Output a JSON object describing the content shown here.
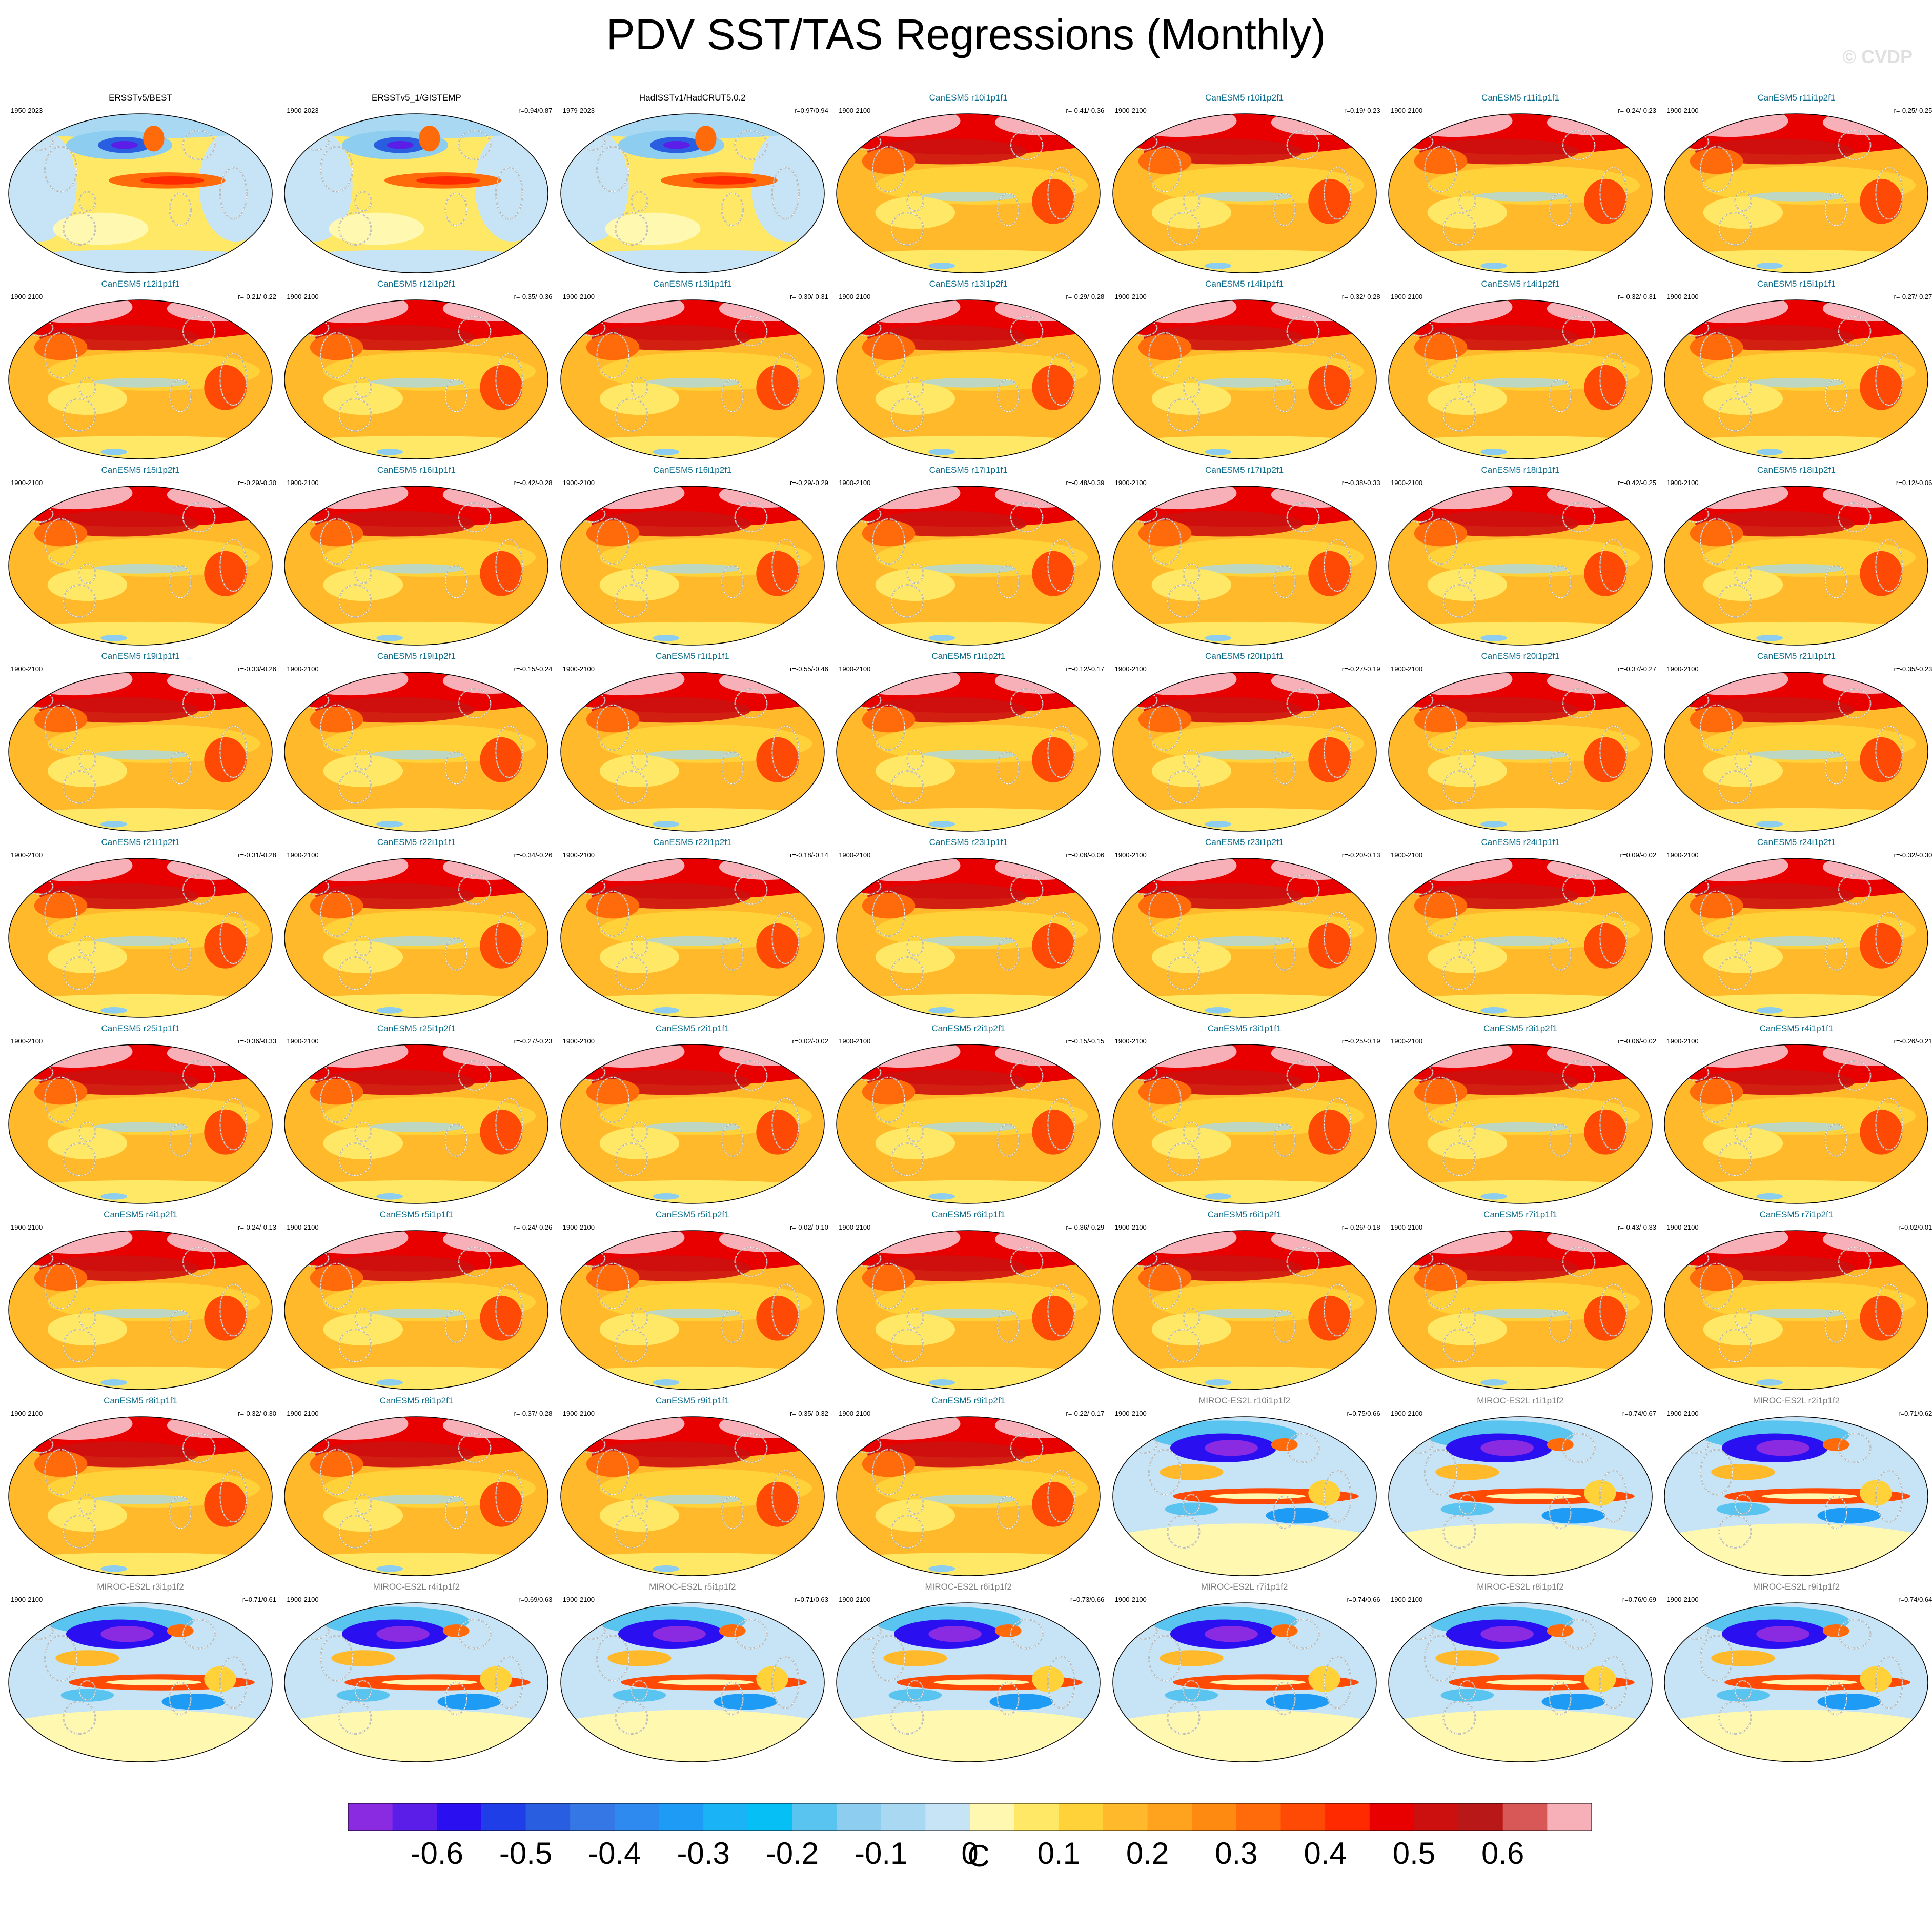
{
  "title": "PDV SST/TAS Regressions (Monthly)",
  "watermark": "© CVDP",
  "colors": {
    "obs_title": "#000000",
    "canesm_title": "#0b6c8c",
    "miroc_title": "#7a7a7a"
  },
  "chart_data": {
    "type": "heatmap",
    "description_source": "grid of global map panels",
    "colorbar": {
      "unit": "C",
      "tick_labels": [
        "-0.6",
        "-0.5",
        "-0.4",
        "-0.3",
        "-0.2",
        "-0.1",
        "0",
        "0.1",
        "0.2",
        "0.3",
        "0.4",
        "0.5",
        "0.6"
      ],
      "colors": [
        "#8a2be2",
        "#5a1ee8",
        "#2a10f0",
        "#1f3ee8",
        "#2a5ee0",
        "#3578e5",
        "#2f8af0",
        "#1e9cf5",
        "#1ab3f5",
        "#06c0f5",
        "#5ac4f0",
        "#8ccdf0",
        "#a8d8f2",
        "#c6e4f5",
        "#fff8b0",
        "#ffe866",
        "#ffd23a",
        "#ffb92a",
        "#ffa31f",
        "#ff8a12",
        "#ff6a0a",
        "#ff4a05",
        "#ff2a00",
        "#e80000",
        "#cc1010",
        "#b81818",
        "#d85858",
        "#f8b0b8"
      ]
    },
    "panels": [
      {
        "title": "ERSSTv5/BEST",
        "years": "1950-2023",
        "corr": "",
        "family": "obs",
        "pattern": "obs"
      },
      {
        "title": "ERSSTv5_1/GISTEMP",
        "years": "1900-2023",
        "corr": "r=0.94/0.87",
        "family": "obs",
        "pattern": "obs"
      },
      {
        "title": "HadISSTv1/HadCRUT5.0.2",
        "years": "1979-2023",
        "corr": "r=0.97/0.94",
        "family": "obs",
        "pattern": "obs"
      },
      {
        "title": "CanESM5 r10i1p1f1",
        "years": "1900-2100",
        "corr": "r=-0.41/-0.36",
        "family": "canesm",
        "pattern": "warm"
      },
      {
        "title": "CanESM5 r10i1p2f1",
        "years": "1900-2100",
        "corr": "r=0.19/-0.23",
        "family": "canesm",
        "pattern": "warm"
      },
      {
        "title": "CanESM5 r11i1p1f1",
        "years": "1900-2100",
        "corr": "r=-0.24/-0.23",
        "family": "canesm",
        "pattern": "warm"
      },
      {
        "title": "CanESM5 r11i1p2f1",
        "years": "1900-2100",
        "corr": "r=-0.25/-0.25",
        "family": "canesm",
        "pattern": "warm"
      },
      {
        "title": "CanESM5 r12i1p1f1",
        "years": "1900-2100",
        "corr": "r=-0.21/-0.22",
        "family": "canesm",
        "pattern": "warm"
      },
      {
        "title": "CanESM5 r12i1p2f1",
        "years": "1900-2100",
        "corr": "r=-0.35/-0.36",
        "family": "canesm",
        "pattern": "warm"
      },
      {
        "title": "CanESM5 r13i1p1f1",
        "years": "1900-2100",
        "corr": "r=-0.30/-0.31",
        "family": "canesm",
        "pattern": "warm"
      },
      {
        "title": "CanESM5 r13i1p2f1",
        "years": "1900-2100",
        "corr": "r=-0.29/-0.28",
        "family": "canesm",
        "pattern": "warm"
      },
      {
        "title": "CanESM5 r14i1p1f1",
        "years": "1900-2100",
        "corr": "r=-0.32/-0.28",
        "family": "canesm",
        "pattern": "warm"
      },
      {
        "title": "CanESM5 r14i1p2f1",
        "years": "1900-2100",
        "corr": "r=-0.32/-0.31",
        "family": "canesm",
        "pattern": "warm"
      },
      {
        "title": "CanESM5 r15i1p1f1",
        "years": "1900-2100",
        "corr": "r=-0.27/-0.27",
        "family": "canesm",
        "pattern": "warm"
      },
      {
        "title": "CanESM5 r15i1p2f1",
        "years": "1900-2100",
        "corr": "r=-0.29/-0.30",
        "family": "canesm",
        "pattern": "warm"
      },
      {
        "title": "CanESM5 r16i1p1f1",
        "years": "1900-2100",
        "corr": "r=-0.42/-0.28",
        "family": "canesm",
        "pattern": "warm"
      },
      {
        "title": "CanESM5 r16i1p2f1",
        "years": "1900-2100",
        "corr": "r=-0.29/-0.29",
        "family": "canesm",
        "pattern": "warm"
      },
      {
        "title": "CanESM5 r17i1p1f1",
        "years": "1900-2100",
        "corr": "r=-0.48/-0.39",
        "family": "canesm",
        "pattern": "warm"
      },
      {
        "title": "CanESM5 r17i1p2f1",
        "years": "1900-2100",
        "corr": "r=-0.38/-0.33",
        "family": "canesm",
        "pattern": "warm"
      },
      {
        "title": "CanESM5 r18i1p1f1",
        "years": "1900-2100",
        "corr": "r=-0.42/-0.25",
        "family": "canesm",
        "pattern": "warm"
      },
      {
        "title": "CanESM5 r18i1p2f1",
        "years": "1900-2100",
        "corr": "r=0.12/-0.06",
        "family": "canesm",
        "pattern": "warm"
      },
      {
        "title": "CanESM5 r19i1p1f1",
        "years": "1900-2100",
        "corr": "r=-0.33/-0.26",
        "family": "canesm",
        "pattern": "warm"
      },
      {
        "title": "CanESM5 r19i1p2f1",
        "years": "1900-2100",
        "corr": "r=-0.15/-0.24",
        "family": "canesm",
        "pattern": "warm"
      },
      {
        "title": "CanESM5 r1i1p1f1",
        "years": "1900-2100",
        "corr": "r=-0.55/-0.46",
        "family": "canesm",
        "pattern": "warm"
      },
      {
        "title": "CanESM5 r1i1p2f1",
        "years": "1900-2100",
        "corr": "r=-0.12/-0.17",
        "family": "canesm",
        "pattern": "warm"
      },
      {
        "title": "CanESM5 r20i1p1f1",
        "years": "1900-2100",
        "corr": "r=-0.27/-0.19",
        "family": "canesm",
        "pattern": "warm"
      },
      {
        "title": "CanESM5 r20i1p2f1",
        "years": "1900-2100",
        "corr": "r=-0.37/-0.27",
        "family": "canesm",
        "pattern": "warm"
      },
      {
        "title": "CanESM5 r21i1p1f1",
        "years": "1900-2100",
        "corr": "r=-0.35/-0.23",
        "family": "canesm",
        "pattern": "warm"
      },
      {
        "title": "CanESM5 r21i1p2f1",
        "years": "1900-2100",
        "corr": "r=-0.31/-0.28",
        "family": "canesm",
        "pattern": "warm"
      },
      {
        "title": "CanESM5 r22i1p1f1",
        "years": "1900-2100",
        "corr": "r=-0.34/-0.26",
        "family": "canesm",
        "pattern": "warm"
      },
      {
        "title": "CanESM5 r22i1p2f1",
        "years": "1900-2100",
        "corr": "r=-0.18/-0.14",
        "family": "canesm",
        "pattern": "warm"
      },
      {
        "title": "CanESM5 r23i1p1f1",
        "years": "1900-2100",
        "corr": "r=-0.08/-0.06",
        "family": "canesm",
        "pattern": "warm"
      },
      {
        "title": "CanESM5 r23i1p2f1",
        "years": "1900-2100",
        "corr": "r=-0.20/-0.13",
        "family": "canesm",
        "pattern": "warm"
      },
      {
        "title": "CanESM5 r24i1p1f1",
        "years": "1900-2100",
        "corr": "r=0.09/-0.02",
        "family": "canesm",
        "pattern": "warm"
      },
      {
        "title": "CanESM5 r24i1p2f1",
        "years": "1900-2100",
        "corr": "r=-0.32/-0.30",
        "family": "canesm",
        "pattern": "warm"
      },
      {
        "title": "CanESM5 r25i1p1f1",
        "years": "1900-2100",
        "corr": "r=-0.36/-0.33",
        "family": "canesm",
        "pattern": "warm"
      },
      {
        "title": "CanESM5 r25i1p2f1",
        "years": "1900-2100",
        "corr": "r=-0.27/-0.23",
        "family": "canesm",
        "pattern": "warm"
      },
      {
        "title": "CanESM5 r2i1p1f1",
        "years": "1900-2100",
        "corr": "r=0.02/-0.02",
        "family": "canesm",
        "pattern": "warm"
      },
      {
        "title": "CanESM5 r2i1p2f1",
        "years": "1900-2100",
        "corr": "r=-0.15/-0.15",
        "family": "canesm",
        "pattern": "warm"
      },
      {
        "title": "CanESM5 r3i1p1f1",
        "years": "1900-2100",
        "corr": "r=-0.25/-0.19",
        "family": "canesm",
        "pattern": "warm"
      },
      {
        "title": "CanESM5 r3i1p2f1",
        "years": "1900-2100",
        "corr": "r=-0.06/-0.02",
        "family": "canesm",
        "pattern": "warm"
      },
      {
        "title": "CanESM5 r4i1p1f1",
        "years": "1900-2100",
        "corr": "r=-0.26/-0.21",
        "family": "canesm",
        "pattern": "warm"
      },
      {
        "title": "CanESM5 r4i1p2f1",
        "years": "1900-2100",
        "corr": "r=-0.24/-0.13",
        "family": "canesm",
        "pattern": "warm"
      },
      {
        "title": "CanESM5 r5i1p1f1",
        "years": "1900-2100",
        "corr": "r=-0.24/-0.26",
        "family": "canesm",
        "pattern": "warm"
      },
      {
        "title": "CanESM5 r5i1p2f1",
        "years": "1900-2100",
        "corr": "r=-0.02/-0.10",
        "family": "canesm",
        "pattern": "warm"
      },
      {
        "title": "CanESM5 r6i1p1f1",
        "years": "1900-2100",
        "corr": "r=-0.36/-0.29",
        "family": "canesm",
        "pattern": "warm"
      },
      {
        "title": "CanESM5 r6i1p2f1",
        "years": "1900-2100",
        "corr": "r=-0.26/-0.18",
        "family": "canesm",
        "pattern": "warm"
      },
      {
        "title": "CanESM5 r7i1p1f1",
        "years": "1900-2100",
        "corr": "r=-0.43/-0.33",
        "family": "canesm",
        "pattern": "warm"
      },
      {
        "title": "CanESM5 r7i1p2f1",
        "years": "1900-2100",
        "corr": "r=0.02/0.01",
        "family": "canesm",
        "pattern": "warm"
      },
      {
        "title": "CanESM5 r8i1p1f1",
        "years": "1900-2100",
        "corr": "r=-0.32/-0.30",
        "family": "canesm",
        "pattern": "warm"
      },
      {
        "title": "CanESM5 r8i1p2f1",
        "years": "1900-2100",
        "corr": "r=-0.37/-0.28",
        "family": "canesm",
        "pattern": "warm"
      },
      {
        "title": "CanESM5 r9i1p1f1",
        "years": "1900-2100",
        "corr": "r=-0.35/-0.32",
        "family": "canesm",
        "pattern": "warm"
      },
      {
        "title": "CanESM5 r9i1p2f1",
        "years": "1900-2100",
        "corr": "r=-0.22/-0.17",
        "family": "canesm",
        "pattern": "warm"
      },
      {
        "title": "MIROC-ES2L r10i1p1f2",
        "years": "1900-2100",
        "corr": "r=0.75/0.66",
        "family": "miroc",
        "pattern": "pdo"
      },
      {
        "title": "MIROC-ES2L r1i1p1f2",
        "years": "1900-2100",
        "corr": "r=0.74/0.67",
        "family": "miroc",
        "pattern": "pdo"
      },
      {
        "title": "MIROC-ES2L r2i1p1f2",
        "years": "1900-2100",
        "corr": "r=0.71/0.62",
        "family": "miroc",
        "pattern": "pdo"
      },
      {
        "title": "MIROC-ES2L r3i1p1f2",
        "years": "1900-2100",
        "corr": "r=0.71/0.61",
        "family": "miroc",
        "pattern": "pdo"
      },
      {
        "title": "MIROC-ES2L r4i1p1f2",
        "years": "1900-2100",
        "corr": "r=0.69/0.63",
        "family": "miroc",
        "pattern": "pdo"
      },
      {
        "title": "MIROC-ES2L r5i1p1f2",
        "years": "1900-2100",
        "corr": "r=0.71/0.63",
        "family": "miroc",
        "pattern": "pdo"
      },
      {
        "title": "MIROC-ES2L r6i1p1f2",
        "years": "1900-2100",
        "corr": "r=0.73/0.66",
        "family": "miroc",
        "pattern": "pdo"
      },
      {
        "title": "MIROC-ES2L r7i1p1f2",
        "years": "1900-2100",
        "corr": "r=0.74/0.66",
        "family": "miroc",
        "pattern": "pdo"
      },
      {
        "title": "MIROC-ES2L r8i1p1f2",
        "years": "1900-2100",
        "corr": "r=0.76/0.69",
        "family": "miroc",
        "pattern": "pdo"
      },
      {
        "title": "MIROC-ES2L r9i1p1f2",
        "years": "1900-2100",
        "corr": "r=0.74/0.64",
        "family": "miroc",
        "pattern": "pdo"
      }
    ]
  }
}
